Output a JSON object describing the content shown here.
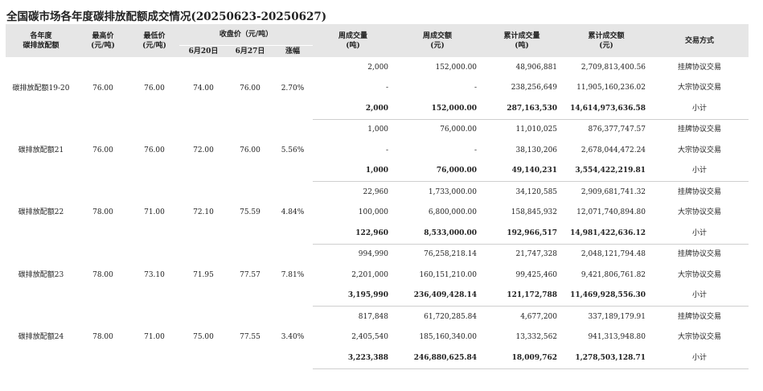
{
  "title": "全国碳市场各年度碳排放配额成交情况(20250623-20250627)",
  "headers": {
    "product": "各年度\n碳排放配额",
    "high": "最高价\n(元/吨)",
    "low": "最低价\n(元/吨)",
    "close_group": "收盘价（元/吨）",
    "close_0620": "6月20日",
    "close_0627": "6月27日",
    "change": "涨幅",
    "weekly_volume": "周成交量\n(吨)",
    "weekly_amount": "周成交额\n(元)",
    "cum_volume": "累计成交量\n(吨)",
    "cum_amount": "累计成交额\n(元)",
    "method": "交易方式"
  },
  "groups": [
    {
      "name": "碳排放配额19-20",
      "high": "76.00",
      "low": "76.00",
      "close_0620": "74.00",
      "close_0627": "76.00",
      "change": "2.70%",
      "rows": [
        {
          "wv": "2,000",
          "wa": "152,000.00",
          "cv": "48,906,881",
          "ca": "2,709,813,400.56",
          "method": "挂牌协议交易"
        },
        {
          "wv": "-",
          "wa": "-",
          "cv": "238,256,649",
          "ca": "11,905,160,236.02",
          "method": "大宗协议交易"
        },
        {
          "wv": "2,000",
          "wa": "152,000.00",
          "cv": "287,163,530",
          "ca": "14,614,973,636.58",
          "method": "小计"
        }
      ]
    },
    {
      "name": "碳排放配额21",
      "high": "76.00",
      "low": "76.00",
      "close_0620": "72.00",
      "close_0627": "76.00",
      "change": "5.56%",
      "rows": [
        {
          "wv": "1,000",
          "wa": "76,000.00",
          "cv": "11,010,025",
          "ca": "876,377,747.57",
          "method": "挂牌协议交易"
        },
        {
          "wv": "-",
          "wa": "-",
          "cv": "38,130,206",
          "ca": "2,678,044,472.24",
          "method": "大宗协议交易"
        },
        {
          "wv": "1,000",
          "wa": "76,000.00",
          "cv": "49,140,231",
          "ca": "3,554,422,219.81",
          "method": "小计"
        }
      ]
    },
    {
      "name": "碳排放配额22",
      "high": "78.00",
      "low": "71.00",
      "close_0620": "72.10",
      "close_0627": "75.59",
      "change": "4.84%",
      "rows": [
        {
          "wv": "22,960",
          "wa": "1,733,000.00",
          "cv": "34,120,585",
          "ca": "2,909,681,741.32",
          "method": "挂牌协议交易"
        },
        {
          "wv": "100,000",
          "wa": "6,800,000.00",
          "cv": "158,845,932",
          "ca": "12,071,740,894.80",
          "method": "大宗协议交易"
        },
        {
          "wv": "122,960",
          "wa": "8,533,000.00",
          "cv": "192,966,517",
          "ca": "14,981,422,636.12",
          "method": "小计"
        }
      ]
    },
    {
      "name": "碳排放配额23",
      "high": "78.00",
      "low": "73.10",
      "close_0620": "71.95",
      "close_0627": "77.57",
      "change": "7.81%",
      "rows": [
        {
          "wv": "994,990",
          "wa": "76,258,218.14",
          "cv": "21,747,328",
          "ca": "2,048,121,794.48",
          "method": "挂牌协议交易"
        },
        {
          "wv": "2,201,000",
          "wa": "160,151,210.00",
          "cv": "99,425,460",
          "ca": "9,421,806,761.82",
          "method": "大宗协议交易"
        },
        {
          "wv": "3,195,990",
          "wa": "236,409,428.14",
          "cv": "121,172,788",
          "ca": "11,469,928,556.30",
          "method": "小计"
        }
      ]
    },
    {
      "name": "碳排放配额24",
      "high": "78.00",
      "low": "71.00",
      "close_0620": "75.00",
      "close_0627": "77.55",
      "change": "3.40%",
      "rows": [
        {
          "wv": "817,848",
          "wa": "61,720,285.84",
          "cv": "4,677,200",
          "ca": "337,189,179.91",
          "method": "挂牌协议交易"
        },
        {
          "wv": "2,405,540",
          "wa": "185,160,340.00",
          "cv": "13,332,562",
          "ca": "941,313,948.80",
          "method": "大宗协议交易"
        },
        {
          "wv": "3,223,388",
          "wa": "246,880,625.84",
          "cv": "18,009,762",
          "ca": "1,278,503,128.71",
          "method": "小计"
        }
      ]
    }
  ]
}
